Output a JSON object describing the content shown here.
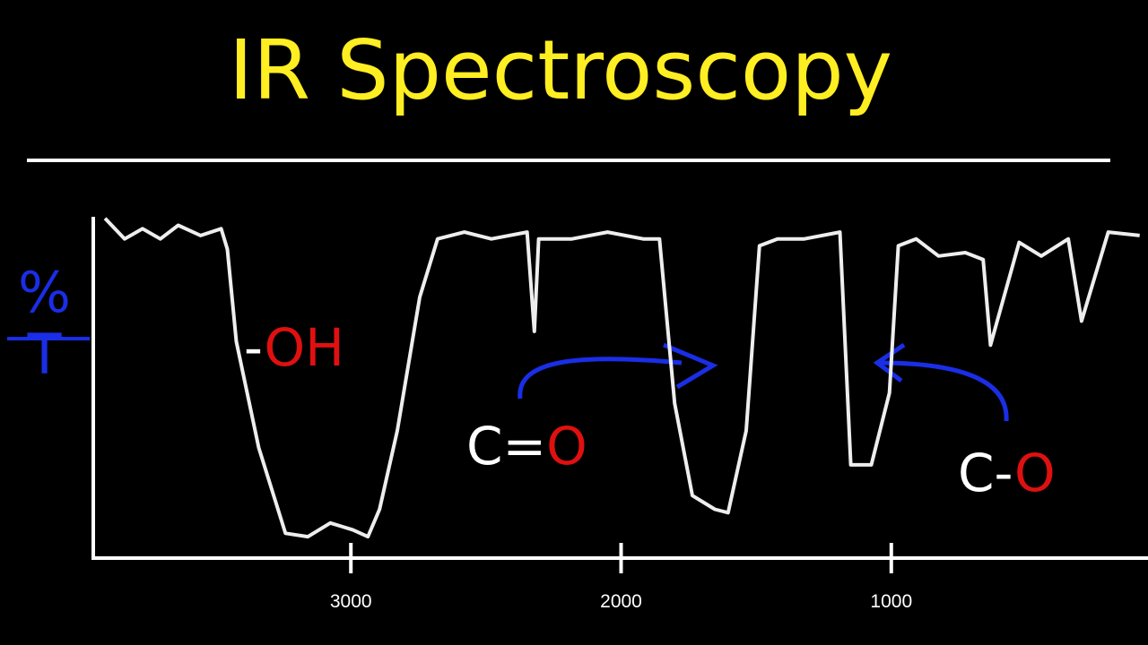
{
  "chart_data": {
    "type": "line",
    "title": "IR Spectroscopy",
    "y_label": "%T",
    "x": [
      3910,
      3837,
      3771,
      3705,
      3639,
      3556,
      3480,
      3457,
      3424,
      3341,
      3242,
      3159,
      3076,
      2993,
      2937,
      2894,
      2828,
      2745,
      2679,
      2580,
      2480,
      2348,
      2321,
      2305,
      2182,
      2050,
      1918,
      1858,
      1802,
      1736,
      1653,
      1604,
      1537,
      1488,
      1421,
      1322,
      1190,
      1150,
      1074,
      1007,
      974,
      908,
      825,
      726,
      660,
      633,
      527,
      445,
      345,
      296,
      197,
      81
    ],
    "series": [
      {
        "color": "#eeeeee",
        "values": [
          99,
          93,
          96,
          93,
          97,
          94,
          96,
          90,
          63,
          32,
          7,
          6,
          10,
          8,
          6,
          14,
          37,
          76,
          93,
          95,
          93,
          95,
          66,
          93,
          93,
          95,
          93,
          93,
          45,
          18,
          14,
          13,
          37,
          91,
          93,
          93,
          95,
          27,
          27,
          48,
          91,
          93,
          88,
          89,
          87,
          62,
          92,
          88,
          93,
          69,
          95,
          94
        ]
      }
    ],
    "xlim": [
      3950,
      50
    ],
    "ylim": [
      0,
      100
    ],
    "xticks": [
      3000,
      2000,
      1000
    ],
    "annotations": [
      {
        "parts": [
          {
            "text": "-",
            "color": "#ffffff"
          },
          {
            "text": "OH",
            "color": "#e01010"
          }
        ]
      },
      {
        "parts": [
          {
            "text": "C=",
            "color": "#ffffff"
          },
          {
            "text": "O",
            "color": "#e01010"
          }
        ]
      },
      {
        "parts": [
          {
            "text": "C-",
            "color": "#ffffff"
          },
          {
            "text": "O",
            "color": "#e01010"
          }
        ]
      }
    ]
  }
}
